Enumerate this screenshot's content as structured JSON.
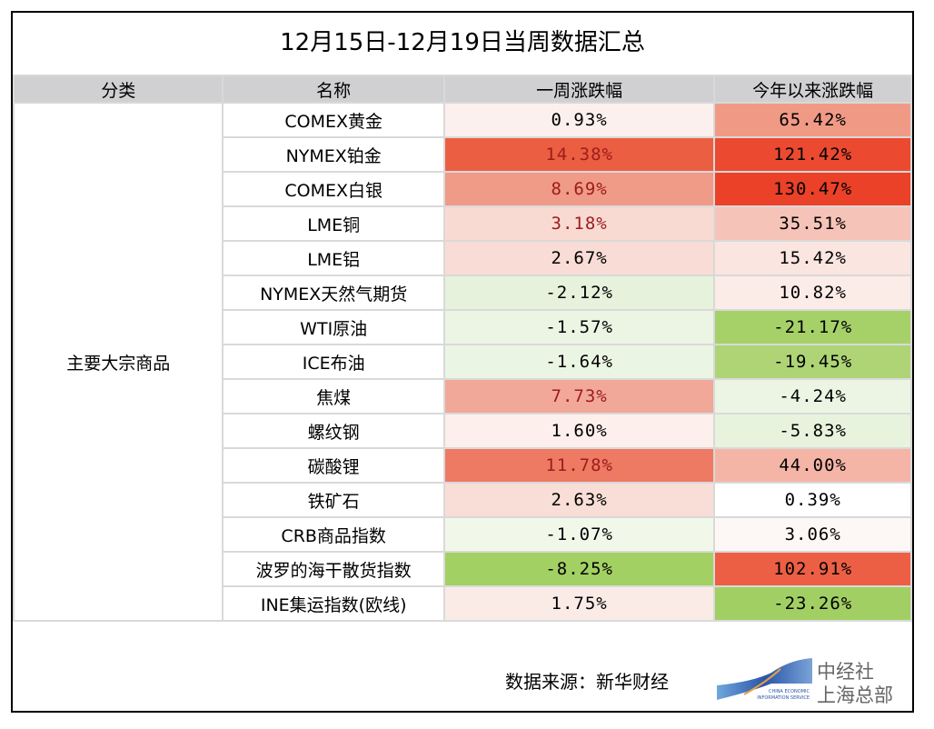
{
  "title": "12月15日-12月19日当周数据汇总",
  "headers": [
    "分类",
    "名称",
    "一周涨跌幅",
    "今年以来涨跌幅"
  ],
  "category": "主要大宗商品",
  "rows": [
    {
      "name": "COMEX黄金",
      "week": "0.93%",
      "ytd": "65.42%",
      "week_bg": "#fcf0ee",
      "ytd_bg": "#f09a86",
      "week_color": "#000"
    },
    {
      "name": "NYMEX铂金",
      "week": "14.38%",
      "ytd": "121.42%",
      "week_bg": "#ec5e42",
      "ytd_bg": "#eb4a30",
      "week_color": "#9c1c1c"
    },
    {
      "name": "COMEX白银",
      "week": "8.69%",
      "ytd": "130.47%",
      "week_bg": "#f09a88",
      "ytd_bg": "#ea4128",
      "week_color": "#9c1c1c"
    },
    {
      "name": "LME铜",
      "week": "3.18%",
      "ytd": "35.51%",
      "week_bg": "#f9dad3",
      "ytd_bg": "#f6c3b8",
      "week_color": "#9c1c1c"
    },
    {
      "name": "LME铝",
      "week": "2.67%",
      "ytd": "15.42%",
      "week_bg": "#f9dcd5",
      "ytd_bg": "#fae5e0",
      "week_color": "#000"
    },
    {
      "name": "NYMEX天然气期货",
      "week": "-2.12%",
      "ytd": "10.82%",
      "week_bg": "#e6f2dc",
      "ytd_bg": "#fbece8",
      "week_color": "#000"
    },
    {
      "name": "WTI原油",
      "week": "-1.57%",
      "ytd": "-21.17%",
      "week_bg": "#ecf5e4",
      "ytd_bg": "#a6d169",
      "week_color": "#000"
    },
    {
      "name": "ICE布油",
      "week": "-1.64%",
      "ytd": "-19.45%",
      "week_bg": "#ebf5e3",
      "ytd_bg": "#aed476",
      "week_color": "#000"
    },
    {
      "name": "焦煤",
      "week": "7.73%",
      "ytd": "-4.24%",
      "week_bg": "#f2a898",
      "ytd_bg": "#ecf5e4",
      "week_color": "#9c1c1c"
    },
    {
      "name": "螺纹钢",
      "week": "1.60%",
      "ytd": "-5.83%",
      "week_bg": "#fcefec",
      "ytd_bg": "#e7f3dd",
      "week_color": "#000"
    },
    {
      "name": "碳酸锂",
      "week": "11.78%",
      "ytd": "44.00%",
      "week_bg": "#ee7a63",
      "ytd_bg": "#f4b5a7",
      "week_color": "#9c1c1c"
    },
    {
      "name": "铁矿石",
      "week": "2.63%",
      "ytd": "0.39%",
      "week_bg": "#f9ddd7",
      "ytd_bg": "#ffffff",
      "week_color": "#000"
    },
    {
      "name": "CRB商品指数",
      "week": "-1.07%",
      "ytd": "3.06%",
      "week_bg": "#f1f8ea",
      "ytd_bg": "#fdf7f5",
      "week_color": "#000"
    },
    {
      "name": "波罗的海干散货指数",
      "week": "-8.25%",
      "ytd": "102.91%",
      "week_bg": "#a3d063",
      "ytd_bg": "#ec5f45",
      "week_color": "#000"
    },
    {
      "name": "INE集运指数(欧线)",
      "week": "1.75%",
      "ytd": "-23.26%",
      "week_bg": "#faebe7",
      "ytd_bg": "#a2cf63",
      "week_color": "#000"
    }
  ],
  "footer": {
    "source": "数据来源：新华财经",
    "logo_line1": "中经社",
    "logo_line2": "上海总部",
    "logo_en1": "CHINA ECONOMIC",
    "logo_en2": "INFORMATION SERVICE"
  }
}
